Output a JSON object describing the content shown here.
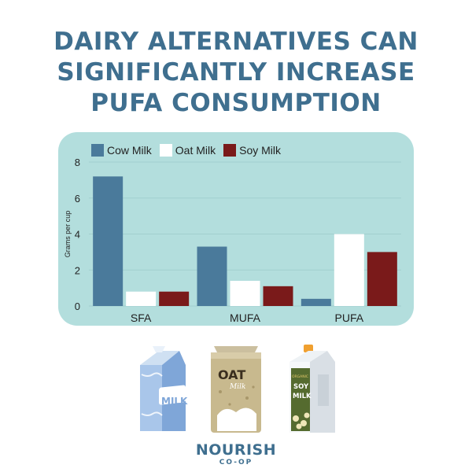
{
  "title_lines": [
    "DAIRY ALTERNATIVES CAN",
    "SIGNIFICANTLY INCREASE",
    "PUFA CONSUMPTION"
  ],
  "colors": {
    "title": "#3f6f8f",
    "card": "#b3dedd",
    "cow": "#4a7a9b",
    "oat": "#ffffff",
    "soy": "#7a1a1a"
  },
  "chart_data": {
    "type": "bar",
    "title": "",
    "xlabel": "",
    "ylabel": "Grams per cup",
    "categories": [
      "SFA",
      "MUFA",
      "PUFA"
    ],
    "ylim": [
      0,
      8
    ],
    "yticks": [
      0,
      2,
      4,
      6,
      8
    ],
    "grid": true,
    "legend_position": "top",
    "series": [
      {
        "name": "Cow Milk",
        "color": "#4a7a9b",
        "values": [
          7.2,
          3.3,
          0.4
        ]
      },
      {
        "name": "Oat Milk",
        "color": "#ffffff",
        "values": [
          0.8,
          1.4,
          4.0
        ]
      },
      {
        "name": "Soy Milk",
        "color": "#7a1a1a",
        "values": [
          0.8,
          1.1,
          3.0
        ]
      }
    ]
  },
  "products": {
    "cow": {
      "label": "MILK",
      "icon": "milk-carton-icon"
    },
    "oat": {
      "label_main": "OAT",
      "label_sub": "Milk",
      "icon": "oat-milk-bag-icon"
    },
    "soy": {
      "label_top": "ORGANIC",
      "label_main_1": "SOY",
      "label_main_2": "MILK",
      "icon": "soy-milk-carton-icon"
    }
  },
  "logo": {
    "main": "NOURISH",
    "sub": "CO-OP"
  }
}
